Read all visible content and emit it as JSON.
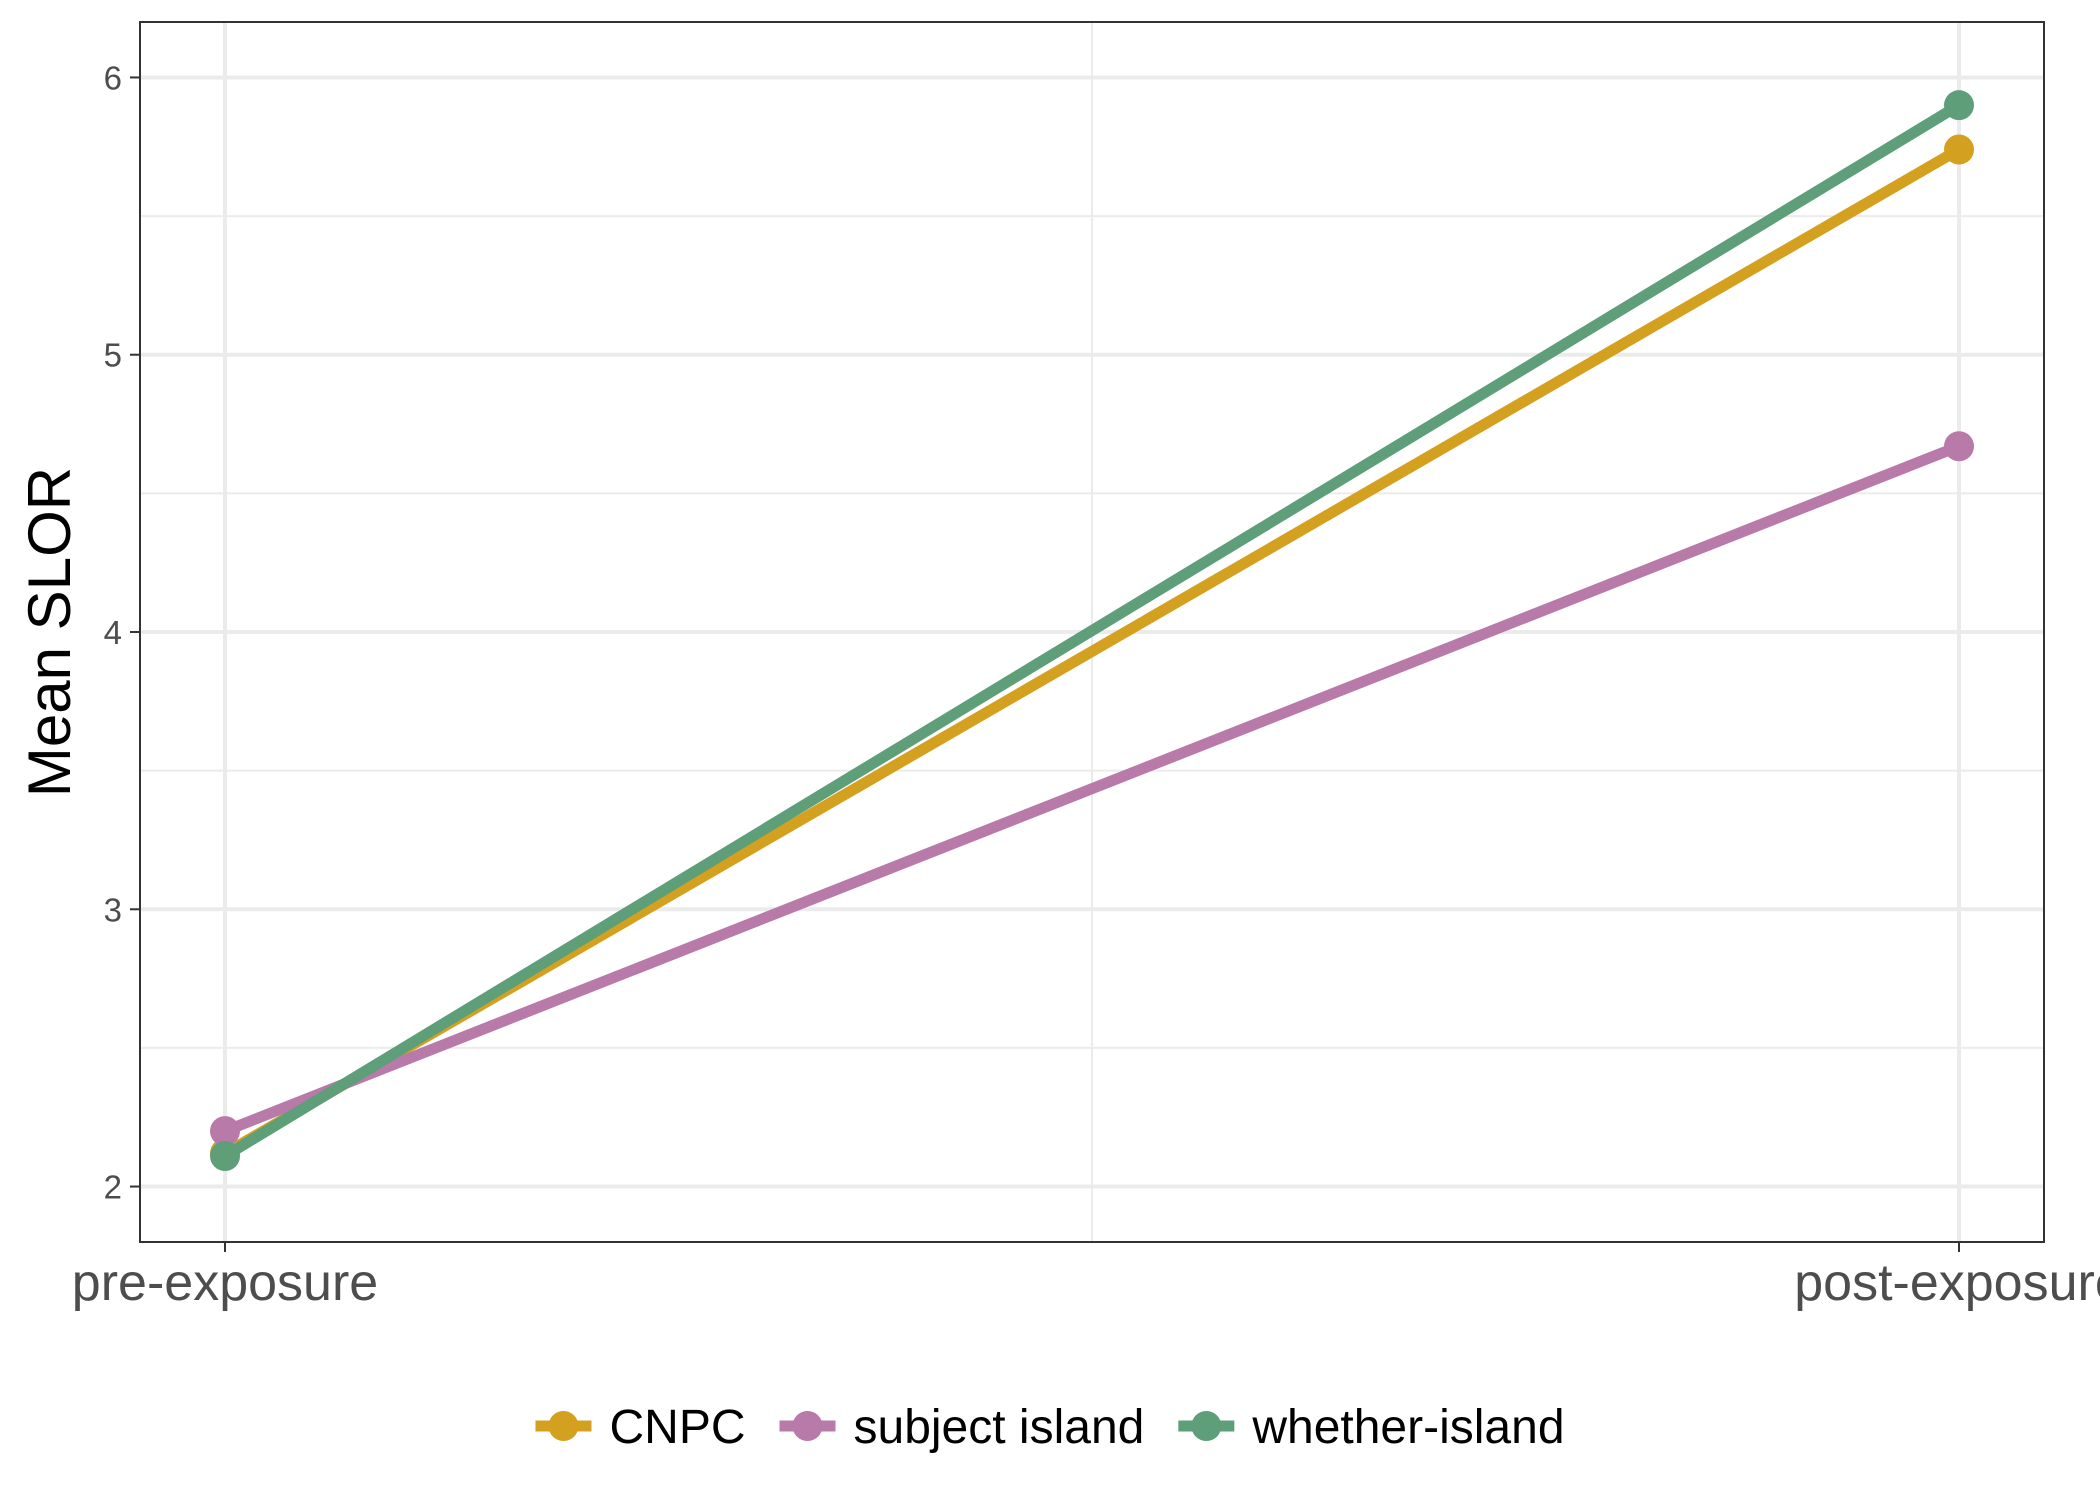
{
  "chart_data": {
    "type": "line",
    "title": "",
    "xlabel": "",
    "ylabel": "Mean SLOR",
    "categories": [
      "pre-exposure",
      "post-exposure"
    ],
    "ylim": [
      1.8,
      6.2
    ],
    "yticks": [
      2,
      3,
      4,
      5,
      6
    ],
    "grid": true,
    "legend_position": "bottom",
    "series": [
      {
        "name": "CNPC",
        "color": "#D4A020",
        "values": [
          2.12,
          5.74
        ]
      },
      {
        "name": "subject island",
        "color": "#B87AA8",
        "values": [
          2.2,
          4.67
        ]
      },
      {
        "name": "whether-island",
        "color": "#5E9E78",
        "values": [
          2.11,
          5.9
        ]
      }
    ]
  }
}
